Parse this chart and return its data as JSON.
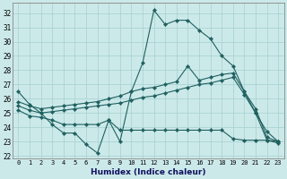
{
  "xlabel": "Humidex (Indice chaleur)",
  "x_ticks": [
    0,
    1,
    2,
    3,
    4,
    5,
    6,
    7,
    8,
    9,
    10,
    11,
    12,
    13,
    14,
    15,
    16,
    17,
    18,
    19,
    20,
    21,
    22,
    23
  ],
  "ylim": [
    21.8,
    32.7
  ],
  "yticks": [
    22,
    23,
    24,
    25,
    26,
    27,
    28,
    29,
    30,
    31,
    32
  ],
  "background_color": "#cce9e9",
  "grid_color": "#aad4d4",
  "line_color": "#206060",
  "line1_y": [
    26.5,
    25.6,
    25.0,
    24.2,
    23.6,
    23.6,
    22.8,
    22.2,
    24.5,
    23.0,
    26.5,
    28.5,
    32.2,
    31.2,
    31.5,
    31.5,
    30.8,
    30.2,
    29.0,
    28.3,
    26.5,
    25.0,
    23.7,
    23.0
  ],
  "line2_y": [
    25.8,
    25.5,
    25.3,
    25.4,
    25.5,
    25.6,
    25.7,
    25.8,
    26.0,
    26.2,
    26.5,
    26.7,
    26.8,
    27.0,
    27.2,
    28.3,
    27.3,
    27.5,
    27.7,
    27.8,
    26.5,
    25.3,
    23.3,
    23.0
  ],
  "line3_y": [
    25.5,
    25.2,
    25.0,
    25.1,
    25.2,
    25.3,
    25.4,
    25.5,
    25.6,
    25.7,
    25.9,
    26.1,
    26.2,
    26.4,
    26.6,
    26.8,
    27.0,
    27.1,
    27.3,
    27.5,
    26.3,
    25.0,
    23.1,
    22.9
  ],
  "line4_y": [
    25.2,
    24.8,
    24.7,
    24.5,
    24.2,
    24.2,
    24.2,
    24.2,
    24.5,
    23.8,
    23.8,
    23.8,
    23.8,
    23.8,
    23.8,
    23.8,
    23.8,
    23.8,
    23.8,
    23.2,
    23.1,
    23.1,
    23.1,
    23.0
  ]
}
